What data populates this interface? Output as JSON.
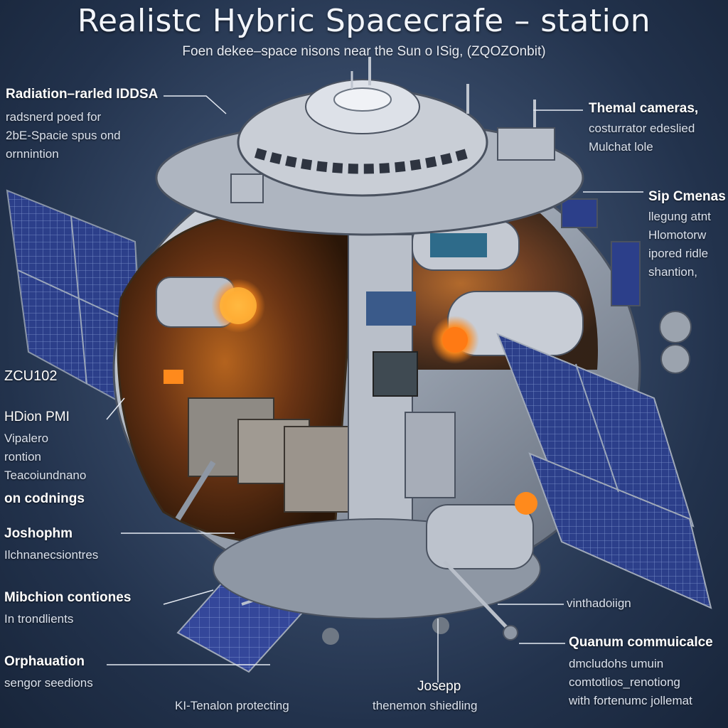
{
  "title": "Realistc Hybric Spacecrafe – station",
  "subtitle": "Foen dekee–space nisons near the Sun o ISig,  (ZQOZOnbit)",
  "colors": {
    "panel_blue": "#2c3f8a",
    "hull_silver": "#c9ced6",
    "glow_orange": "#ff8a1c",
    "background": "#2a3b58"
  },
  "labels": {
    "radiation": {
      "title": "Radiation–rarled IDDSA",
      "lines": [
        "radsnerd   poed for",
        "2bE-Spacie spus ond",
        "ornnintion"
      ]
    },
    "thermal": {
      "title": "Themal cameras,",
      "lines": [
        "costurrator edeslied",
        "Mulchat lole"
      ]
    },
    "sip": {
      "title": "Sip Cmenas",
      "lines": [
        "llegung atnt",
        "Hlomotorw",
        "ipored ridle",
        "shantion,"
      ]
    },
    "zcu": {
      "title": "ZCU102"
    },
    "hdion": {
      "title": "HDion PMI",
      "lines": [
        "Vipalero",
        "rontion",
        "Teacoiundnano"
      ],
      "last": "on codnings"
    },
    "joshophm": {
      "title": "Joshophm",
      "lines": [
        "Ilchnanecsiontres"
      ]
    },
    "mibchion": {
      "title": "Mibchion contiones",
      "lines": [
        "In trondlients"
      ]
    },
    "orphauation": {
      "title": "Orphauation",
      "lines": [
        "sengor seedions"
      ]
    },
    "kit": {
      "text": "KI-Tenalon protecting"
    },
    "josepp": {
      "title": "Josepp",
      "sub": "thenemon shiedling"
    },
    "vintha": {
      "text": "vinthadoiign"
    },
    "quantum": {
      "title": "Quanum commuicalce",
      "lines": [
        "dmcludohs   umuin",
        "comtotlios_renotiong",
        "with fortenumc jollemat"
      ]
    }
  }
}
